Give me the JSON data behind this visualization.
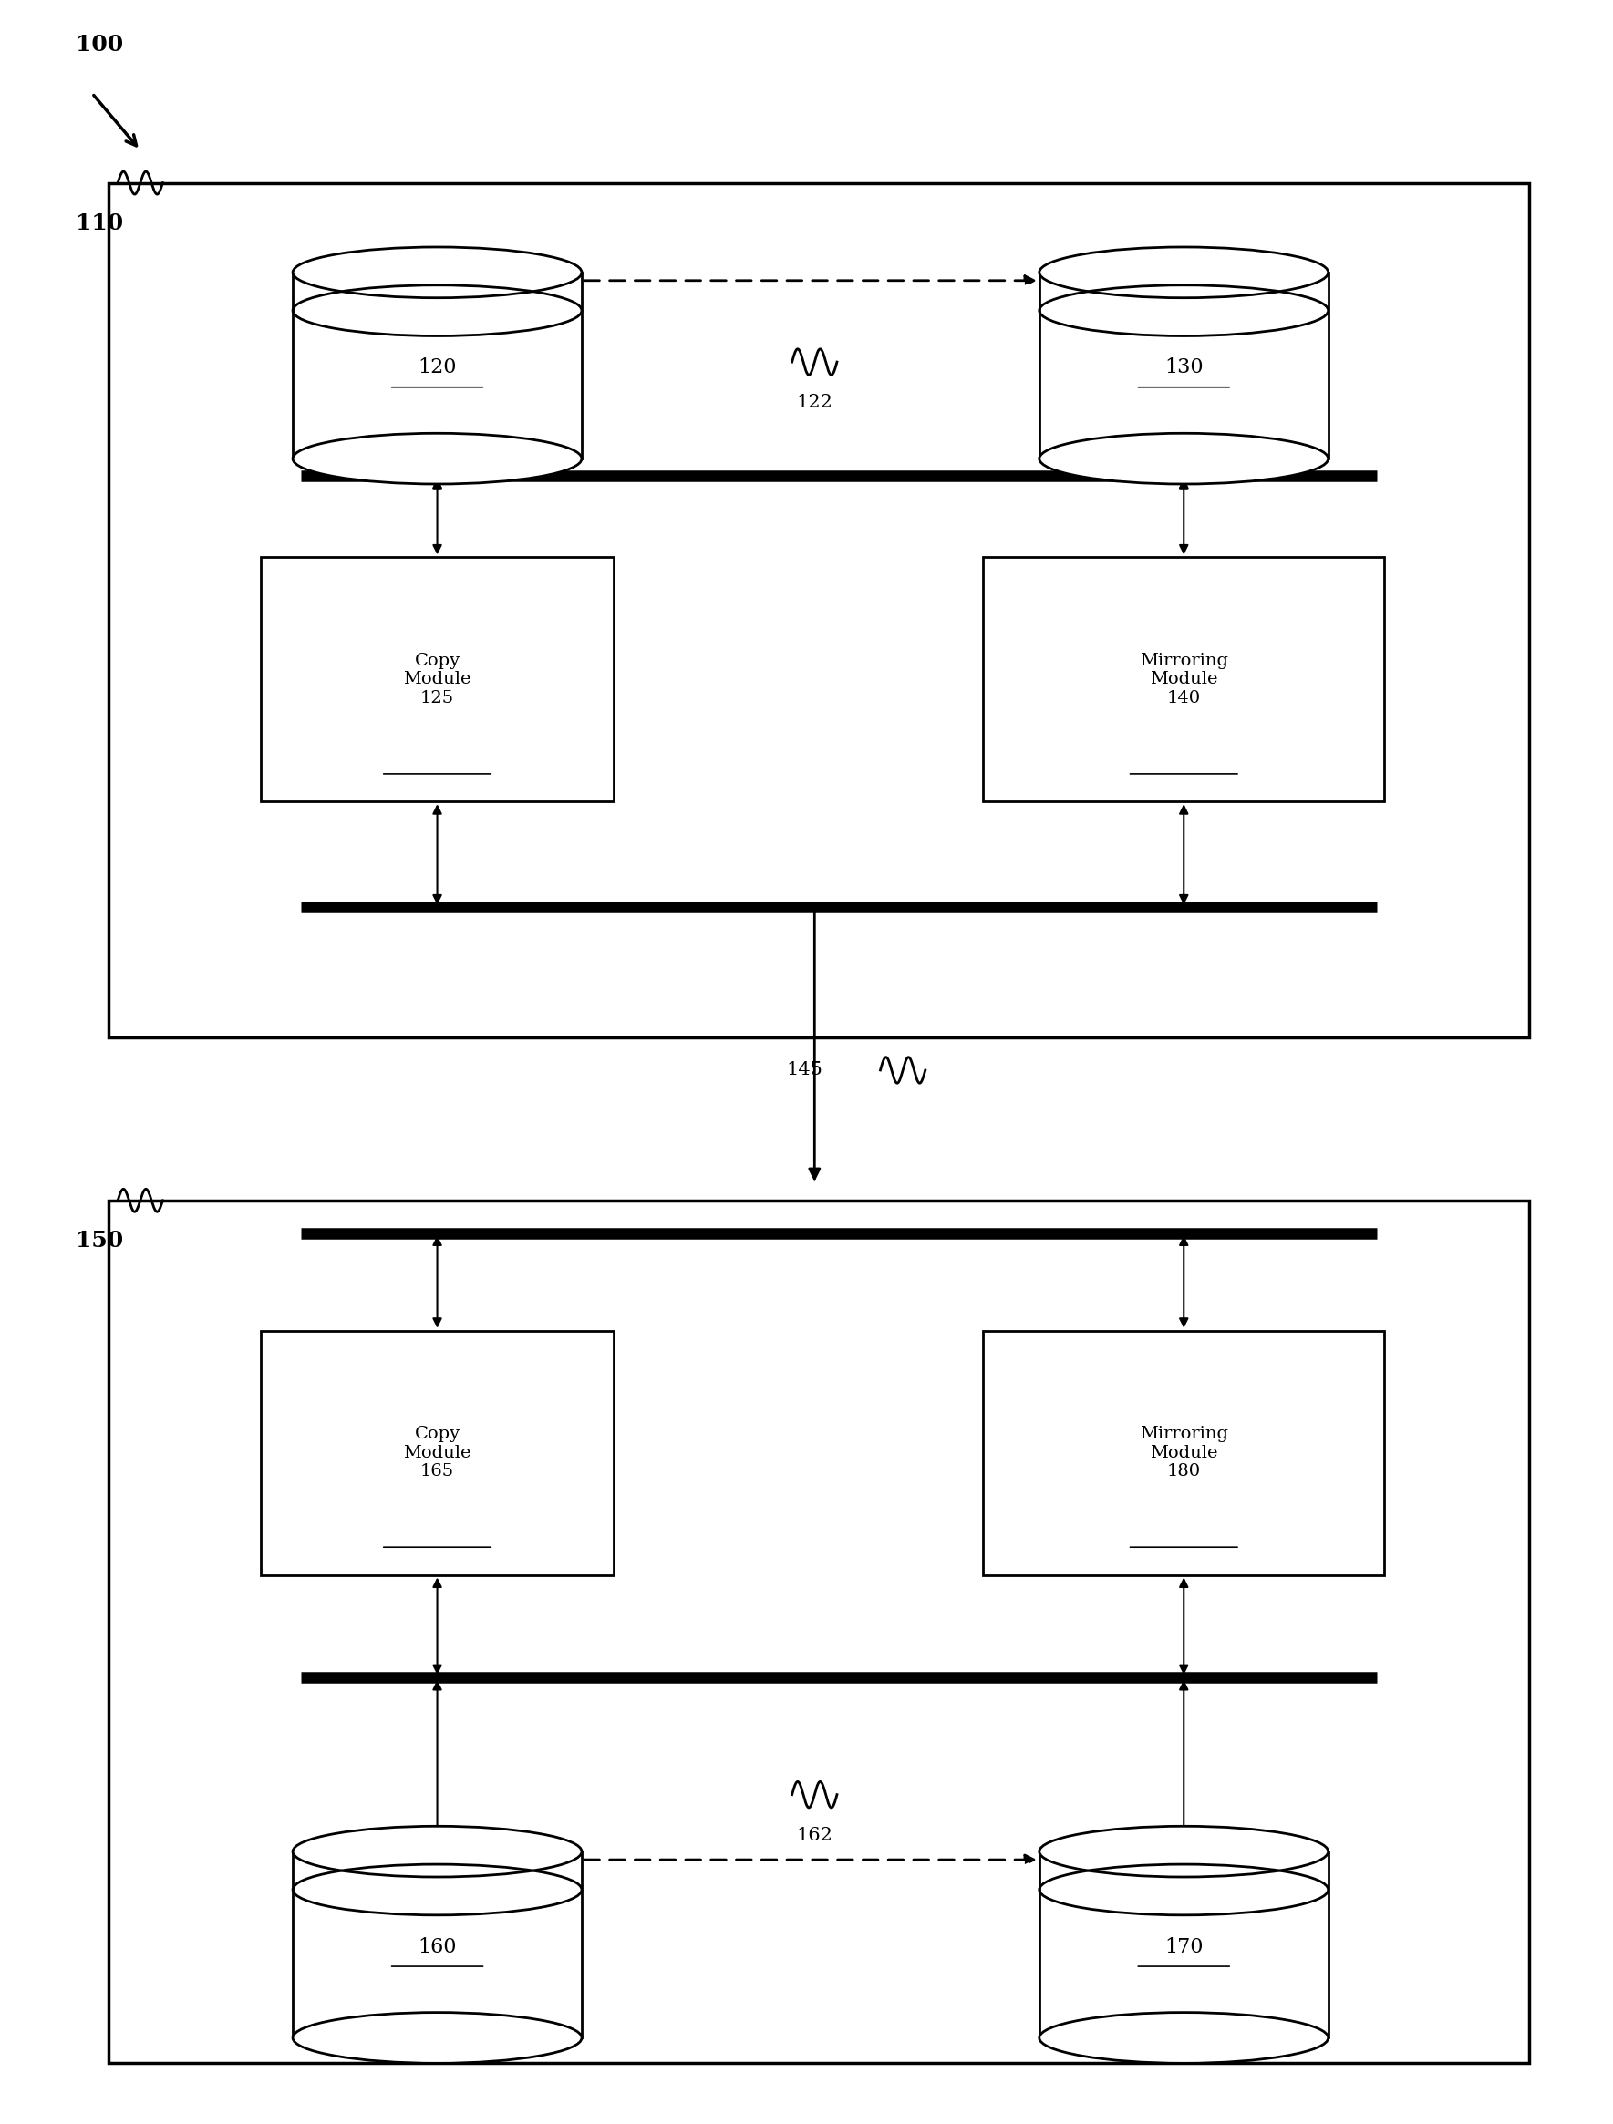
{
  "bg_color": "#ffffff",
  "label_100": "100",
  "label_110": "110",
  "label_150": "150",
  "label_120": "120",
  "label_130": "130",
  "label_122": "122",
  "label_125": "125",
  "label_140": "140",
  "label_145": "145",
  "label_160": "160",
  "label_162": "162",
  "label_165": "165",
  "label_170": "170",
  "label_180": "180",
  "copy_module_text": "Copy\nModule",
  "mirroring_module_text": "Mirroring\nModule",
  "fig_width": 17.69,
  "fig_height": 23.3
}
